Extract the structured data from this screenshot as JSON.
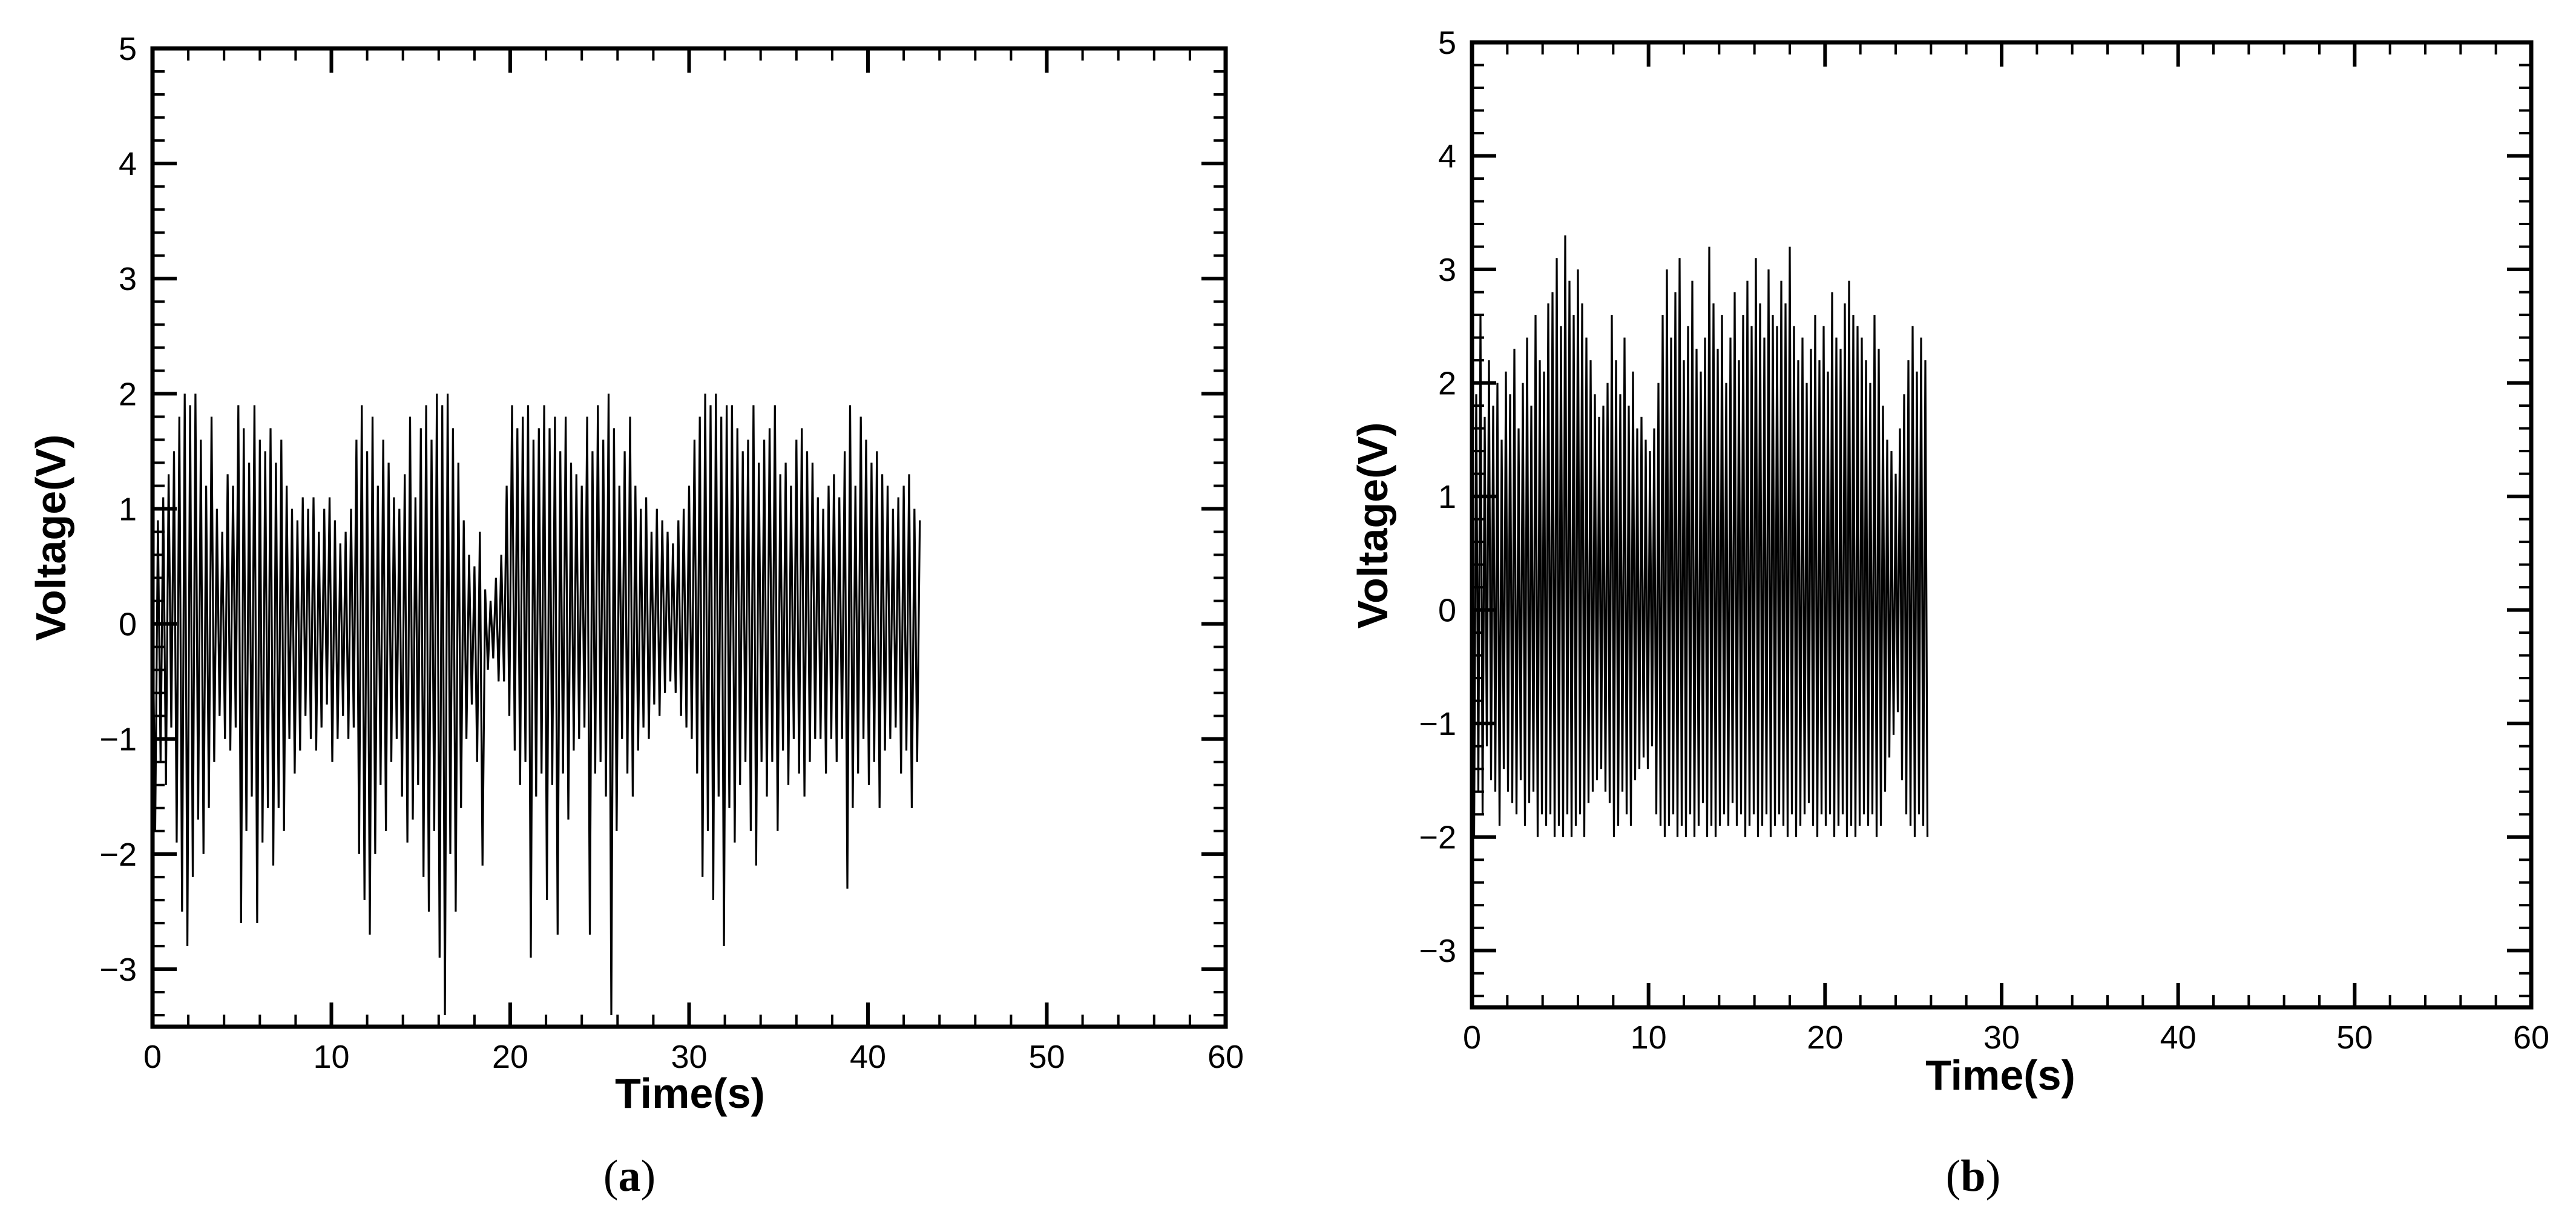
{
  "chart_data": [
    {
      "type": "line",
      "panel_label": "a",
      "xlabel": "Time(s)",
      "ylabel": "Voltage(V)",
      "xlim": [
        0,
        60
      ],
      "ylim": [
        -3.5,
        5
      ],
      "x_ticks": [
        0,
        10,
        20,
        30,
        40,
        50,
        60
      ],
      "y_ticks": [
        -3,
        -2,
        -1,
        0,
        1,
        2,
        3,
        4,
        5
      ],
      "grid": false,
      "series_color": "#000000",
      "series": [
        {
          "name": "",
          "x_step": 0.15,
          "values": [
            0.3,
            -1.8,
            0.9,
            -1.2,
            1.1,
            -1.4,
            1.3,
            -0.9,
            1.5,
            -1.9,
            1.8,
            -2.5,
            2.0,
            -2.8,
            1.9,
            -2.2,
            2.0,
            -1.7,
            1.6,
            -2.0,
            1.2,
            -1.6,
            1.8,
            -1.2,
            1.0,
            -0.8,
            0.8,
            -1.0,
            1.3,
            -1.1,
            1.2,
            -0.9,
            1.9,
            -2.6,
            1.7,
            -1.8,
            1.4,
            -1.5,
            1.9,
            -2.6,
            1.6,
            -1.9,
            1.5,
            -1.6,
            1.7,
            -2.1,
            1.4,
            -1.6,
            1.6,
            -1.8,
            1.2,
            -1.0,
            1.0,
            -1.3,
            0.9,
            -1.1,
            1.1,
            -0.8,
            1.0,
            -1.0,
            1.1,
            -1.1,
            0.8,
            -0.9,
            1.0,
            -0.7,
            1.1,
            -1.2,
            0.9,
            -1.0,
            0.7,
            -0.8,
            0.8,
            -1.0,
            1.0,
            -0.9,
            1.6,
            -2.0,
            1.9,
            -2.4,
            1.5,
            -2.7,
            1.8,
            -2.0,
            1.2,
            -1.4,
            1.6,
            -1.8,
            1.4,
            -1.2,
            1.1,
            -1.0,
            1.0,
            -1.5,
            1.3,
            -1.9,
            1.8,
            -1.7,
            1.1,
            -1.4,
            1.7,
            -2.2,
            1.9,
            -2.5,
            1.6,
            -1.8,
            2.0,
            -2.9,
            1.9,
            -3.4,
            2.0,
            -2.0,
            1.7,
            -2.5,
            1.4,
            -1.6,
            0.9,
            -1.0,
            0.6,
            -0.7,
            0.5,
            -1.2,
            0.8,
            -2.1,
            0.3,
            -0.4,
            0.2,
            -0.3,
            0.4,
            -0.5,
            0.6,
            -0.5,
            1.2,
            -0.8,
            1.9,
            -1.1,
            1.7,
            -1.4,
            1.8,
            -1.2,
            1.9,
            -2.9,
            1.6,
            -1.5,
            1.7,
            -1.3,
            1.9,
            -2.4,
            1.7,
            -1.4,
            1.8,
            -2.7,
            1.5,
            -1.3,
            1.8,
            -1.7,
            1.4,
            -1.1,
            1.3,
            -1.0,
            1.2,
            -0.9,
            1.8,
            -2.7,
            1.5,
            -1.3,
            1.9,
            -1.2,
            1.6,
            -1.5,
            2.0,
            -3.4,
            1.7,
            -1.8,
            1.2,
            -1.0,
            1.5,
            -1.3,
            1.8,
            -1.5,
            1.2,
            -1.1,
            1.0,
            -0.9,
            1.1,
            -1.0,
            0.8,
            -0.7,
            1.0,
            -0.8,
            0.9,
            -0.6,
            0.8,
            -0.5,
            0.7,
            -0.6,
            0.9,
            -0.8,
            1.0,
            -0.9,
            1.2,
            -1.0,
            1.6,
            -1.3,
            1.8,
            -2.2,
            2.0,
            -1.8,
            1.9,
            -2.4,
            2.0,
            -1.5,
            1.8,
            -2.8,
            1.9,
            -1.6,
            1.9,
            -1.9,
            1.7,
            -1.4,
            1.5,
            -1.2,
            1.6,
            -1.8,
            1.9,
            -2.1,
            1.4,
            -1.2,
            1.6,
            -1.5,
            1.7,
            -1.2,
            1.9,
            -1.8,
            1.3,
            -1.1,
            1.4,
            -1.4,
            1.2,
            -1.0,
            1.6,
            -1.3,
            1.7,
            -1.5,
            1.5,
            -1.2,
            1.4,
            -1.0,
            1.1,
            -1.0,
            1.0,
            -1.3,
            1.2,
            -1.0,
            1.3,
            -1.2,
            1.1,
            -1.0,
            1.5,
            -2.3,
            1.9,
            -1.6,
            1.2,
            -1.3,
            1.8,
            -1.0,
            1.6,
            -1.4,
            1.4,
            -1.2,
            1.5,
            -1.6,
            1.3,
            -1.1,
            1.2,
            -1.0,
            1.0,
            -0.9,
            1.1,
            -1.3,
            1.2,
            -1.1,
            1.3,
            -1.6,
            1.0,
            -1.2,
            0.9
          ]
        }
      ]
    },
    {
      "type": "line",
      "panel_label": "b",
      "xlabel": "Time(s)",
      "ylabel": "Voltage(V)",
      "xlim": [
        0,
        60
      ],
      "ylim": [
        -3.5,
        5
      ],
      "x_ticks": [
        0,
        10,
        20,
        30,
        40,
        50,
        60
      ],
      "y_ticks": [
        -3,
        -2,
        -1,
        0,
        1,
        2,
        3,
        4,
        5
      ],
      "grid": false,
      "series_color": "#000000",
      "series": [
        {
          "name": "",
          "x_step": 0.12,
          "values": [
            2.7,
            -2.0,
            1.9,
            -1.6,
            2.6,
            -1.8,
            1.7,
            -1.2,
            2.2,
            -1.5,
            1.8,
            -1.6,
            2.0,
            -1.9,
            1.5,
            -1.4,
            2.1,
            -1.6,
            1.9,
            -1.7,
            2.3,
            -1.8,
            1.6,
            -1.5,
            2.0,
            -1.9,
            2.4,
            -1.7,
            1.8,
            -1.6,
            2.6,
            -2.0,
            2.2,
            -1.8,
            2.1,
            -1.9,
            2.7,
            -1.8,
            2.8,
            -2.0,
            3.1,
            -1.9,
            2.5,
            -2.0,
            3.3,
            -1.8,
            2.9,
            -2.0,
            2.6,
            -1.9,
            3.0,
            -1.8,
            2.7,
            -2.0,
            2.4,
            -1.7,
            2.2,
            -1.6,
            1.9,
            -1.5,
            1.7,
            -1.4,
            1.8,
            -1.6,
            2.0,
            -1.7,
            2.6,
            -2.0,
            2.2,
            -1.9,
            1.9,
            -1.6,
            2.4,
            -1.8,
            1.8,
            -1.9,
            2.1,
            -1.5,
            1.6,
            -1.4,
            1.7,
            -1.3,
            1.5,
            -1.4,
            1.4,
            -1.2,
            1.6,
            -1.8,
            2.0,
            -1.9,
            2.6,
            -2.0,
            3.0,
            -1.9,
            2.4,
            -1.8,
            2.8,
            -2.0,
            3.1,
            -1.9,
            2.2,
            -2.0,
            2.5,
            -1.8,
            2.9,
            -2.0,
            2.3,
            -1.9,
            2.1,
            -1.7,
            2.4,
            -2.0,
            3.2,
            -1.9,
            2.7,
            -2.0,
            2.3,
            -1.9,
            2.6,
            -1.8,
            2.0,
            -1.9,
            2.4,
            -1.7,
            2.8,
            -1.9,
            2.2,
            -1.8,
            2.6,
            -2.0,
            2.9,
            -1.9,
            2.5,
            -1.8,
            3.1,
            -2.0,
            2.7,
            -1.9,
            2.4,
            -1.8,
            3.0,
            -2.0,
            2.6,
            -1.9,
            2.5,
            -1.8,
            2.9,
            -1.9,
            2.7,
            -2.0,
            3.2,
            -1.8,
            2.5,
            -2.0,
            2.2,
            -1.9,
            2.4,
            -1.8,
            2.0,
            -1.7,
            2.3,
            -1.9,
            2.6,
            -2.0,
            2.2,
            -1.8,
            2.5,
            -1.9,
            2.1,
            -1.8,
            2.8,
            -2.0,
            2.4,
            -1.9,
            2.3,
            -1.8,
            2.7,
            -2.0,
            2.9,
            -1.9,
            2.6,
            -2.0,
            2.5,
            -1.9,
            2.4,
            -1.8,
            2.2,
            -1.9,
            2.0,
            -1.8,
            2.6,
            -2.0,
            2.3,
            -1.9,
            1.8,
            -1.6,
            1.5,
            -1.3,
            1.4,
            -1.1,
            1.2,
            -0.9,
            1.6,
            -1.5,
            1.9,
            -1.8,
            2.2,
            -1.9,
            2.5,
            -2.0,
            2.1,
            -1.8,
            2.4,
            -1.9,
            2.2,
            -2.0
          ]
        }
      ]
    }
  ]
}
